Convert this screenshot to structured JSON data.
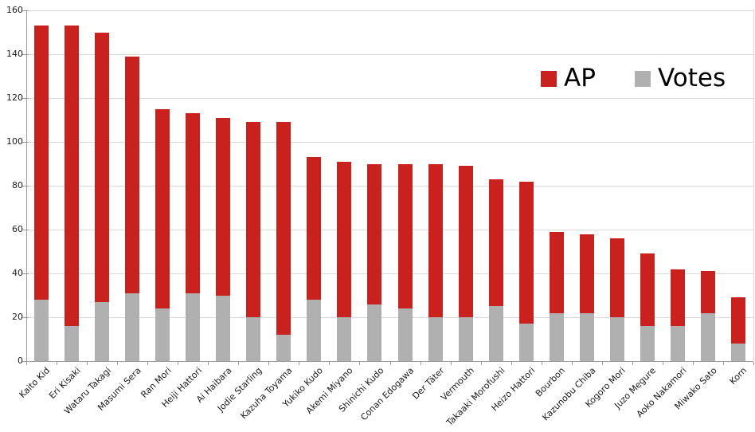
{
  "chart_data": {
    "type": "bar",
    "stacked": true,
    "title": "",
    "xlabel": "",
    "ylabel": "",
    "categories": [
      "Kaito Kid",
      "Eri Kisaki",
      "Wataru Takagi",
      "Masumi Sera",
      "Ran Mori",
      "Heiji Hattori",
      "Ai Haibara",
      "Jodie Starling",
      "Kazuha Toyama",
      "Yukiko Kudo",
      "Akemi Miyano",
      "Shinichi Kudo",
      "Conan Edogawa",
      "Der Täter",
      "Vermouth",
      "Takaaki Morofushi",
      "Heizo Hattori",
      "Bourbon",
      "Kazunobu Chiba",
      "Kogoro Mori",
      "Juzo Megure",
      "Aoko Nakamori",
      "Miwako Sato",
      "Korn"
    ],
    "series": [
      {
        "name": "AP",
        "color": "#c9211e",
        "stack_position": "top",
        "values": [
          125,
          137,
          123,
          108,
          91,
          82,
          81,
          89,
          97,
          65,
          71,
          64,
          66,
          70,
          69,
          58,
          65,
          37,
          36,
          36,
          33,
          26,
          19,
          21
        ]
      },
      {
        "name": "Votes",
        "color": "#b0b0b0",
        "stack_position": "bottom",
        "values": [
          28,
          16,
          27,
          31,
          24,
          31,
          30,
          20,
          12,
          28,
          20,
          26,
          24,
          20,
          20,
          25,
          17,
          22,
          22,
          20,
          16,
          16,
          22,
          8
        ]
      }
    ],
    "stack_totals": [
      153,
      153,
      150,
      139,
      115,
      113,
      111,
      109,
      109,
      93,
      91,
      90,
      90,
      90,
      89,
      83,
      82,
      59,
      58,
      56,
      49,
      42,
      41,
      29
    ],
    "ylim": [
      0,
      160
    ],
    "y_ticks": [
      0,
      20,
      40,
      60,
      80,
      100,
      120,
      140,
      160
    ],
    "grid": "horizontal",
    "legend": {
      "position": "top-right",
      "entries": [
        {
          "label": "AP",
          "color": "#c9211e"
        },
        {
          "label": "Votes",
          "color": "#b0b0b0"
        }
      ]
    }
  },
  "colors": {
    "bar_red": "#c9211e",
    "bar_gray": "#b0b0b0",
    "gridline": "#d9d9d9",
    "axis": "#9a9a9a",
    "label_text": "#1a1a1a",
    "legend_text": "#000000",
    "background": "#ffffff"
  }
}
